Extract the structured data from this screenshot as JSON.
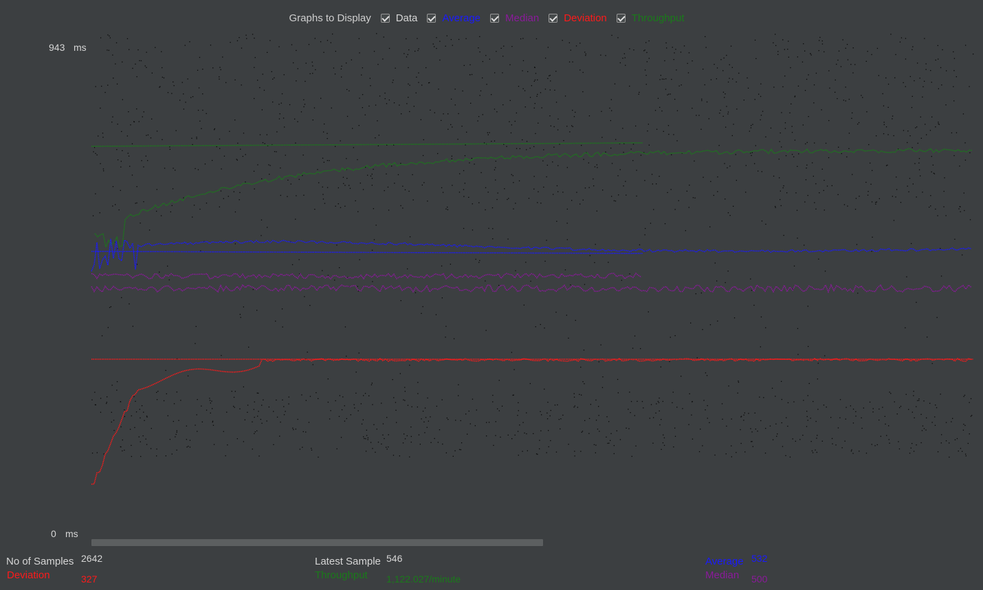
{
  "legend": {
    "title": "Graphs to Display",
    "items": [
      {
        "id": "data",
        "label": "Data",
        "checked": true,
        "color": "#d6d6d6"
      },
      {
        "id": "average",
        "label": "Average",
        "checked": true,
        "color": "#1a1aff"
      },
      {
        "id": "median",
        "label": "Median",
        "checked": true,
        "color": "#8b1a9b"
      },
      {
        "id": "deviation",
        "label": "Deviation",
        "checked": true,
        "color": "#ff1a1a"
      },
      {
        "id": "throughput",
        "label": "Throughput",
        "checked": true,
        "color": "#1a7a1a"
      }
    ]
  },
  "axis": {
    "max_value": "943",
    "max_unit": "ms",
    "min_value": "0",
    "min_unit": "ms"
  },
  "stats": {
    "samples_label": "No of Samples",
    "samples_value": "2642",
    "deviation_label": "Deviation",
    "deviation_value": "327",
    "latest_label": "Latest Sample",
    "latest_value": "546",
    "throughput_label": "Throughput",
    "throughput_value": "1,122.027/minute",
    "average_label": "Average",
    "average_value": "532",
    "median_label": "Median",
    "median_value": "500"
  },
  "chart_data": {
    "type": "scatter",
    "ylim": [
      0,
      943
    ],
    "y_unit": "ms",
    "scale_max_samples": 2642,
    "series": [
      {
        "name": "Average",
        "final_value": 532
      },
      {
        "name": "Median",
        "final_value": 500
      },
      {
        "name": "Deviation",
        "final_value": 327
      },
      {
        "name": "Throughput",
        "final_value": 1122.027
      }
    ]
  },
  "colors": {
    "background": "#3c3f41",
    "data": "#0a0a0a",
    "average": "#1a1aff",
    "median": "#8b1a9b",
    "deviation": "#ff1a1a",
    "throughput": "#1a7a1a"
  }
}
